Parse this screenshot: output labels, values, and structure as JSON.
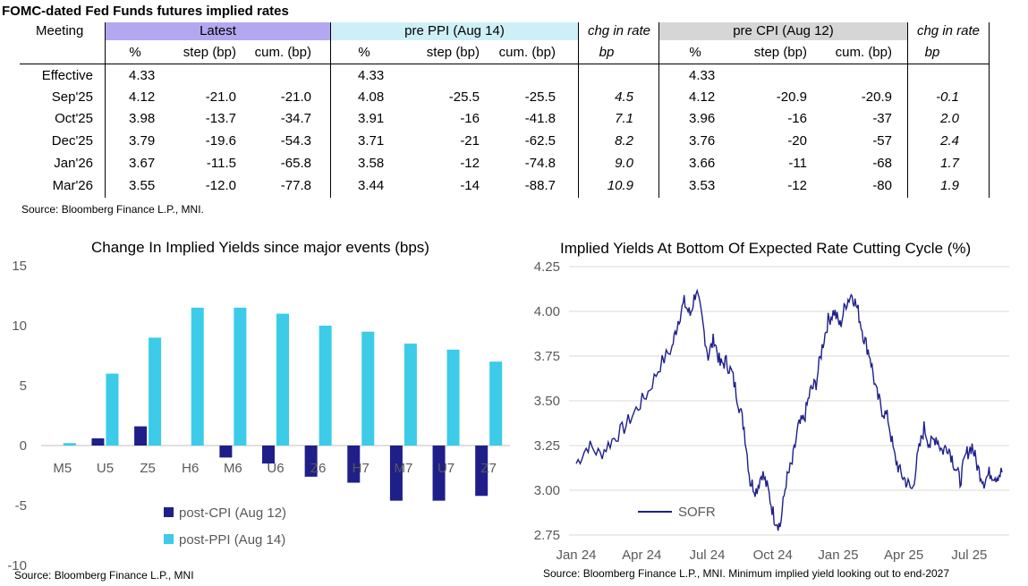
{
  "table": {
    "title": "FOMC-dated Fed Funds futures implied rates",
    "meeting_label": "Meeting",
    "groups": [
      {
        "label": "Latest",
        "color": "#b3a8f0"
      },
      {
        "label": "pre PPI (Aug 14)",
        "color": "#cfeff7"
      },
      {
        "label": "chg in rate",
        "color": ""
      },
      {
        "label": "pre CPI (Aug 12)",
        "color": "#d6d6d6"
      },
      {
        "label": "chg in rate",
        "color": ""
      }
    ],
    "subheaders": [
      "%",
      "step (bp)",
      "cum. (bp)",
      "%",
      "step (bp)",
      "cum. (bp)",
      "bp",
      "%",
      "step (bp)",
      "cum. (bp)",
      "bp"
    ],
    "rows": [
      {
        "meeting": "Effective",
        "cells": [
          "4.33",
          "",
          "",
          "4.33",
          "",
          "",
          "",
          "4.33",
          "",
          "",
          ""
        ]
      },
      {
        "meeting": "Sep'25",
        "cells": [
          "4.12",
          "-21.0",
          "-21.0",
          "4.08",
          "-25.5",
          "-25.5",
          "4.5",
          "4.12",
          "-20.9",
          "-20.9",
          "-0.1"
        ]
      },
      {
        "meeting": "Oct'25",
        "cells": [
          "3.98",
          "-13.7",
          "-34.7",
          "3.91",
          "-16",
          "-41.8",
          "7.1",
          "3.96",
          "-16",
          "-37",
          "2.0"
        ]
      },
      {
        "meeting": "Dec'25",
        "cells": [
          "3.79",
          "-19.6",
          "-54.3",
          "3.71",
          "-21",
          "-62.5",
          "8.2",
          "3.76",
          "-20",
          "-57",
          "2.4"
        ]
      },
      {
        "meeting": "Jan'26",
        "cells": [
          "3.67",
          "-11.5",
          "-65.8",
          "3.58",
          "-12",
          "-74.8",
          "9.0",
          "3.66",
          "-11",
          "-68",
          "1.7"
        ]
      },
      {
        "meeting": "Mar'26",
        "cells": [
          "3.55",
          "-12.0",
          "-77.8",
          "3.44",
          "-14",
          "-88.7",
          "10.9",
          "3.53",
          "-12",
          "-80",
          "1.9"
        ]
      }
    ],
    "source": "Source: Bloomberg Finance L.P., MNI."
  },
  "chart_data": [
    {
      "type": "bar",
      "title": "Change In Implied Yields since major events (bps)",
      "categories": [
        "M5",
        "U5",
        "Z5",
        "H6",
        "M6",
        "U6",
        "Z6",
        "H7",
        "M7",
        "U7",
        "Z7"
      ],
      "series": [
        {
          "name": "post-CPI (Aug 12)",
          "color": "#1f1f8a",
          "values": [
            0.0,
            0.6,
            1.6,
            0.0,
            -1.0,
            -1.5,
            -2.6,
            -3.1,
            -4.6,
            -4.6,
            -4.2
          ]
        },
        {
          "name": "post-PPI (Aug 14)",
          "color": "#3ccbe8",
          "values": [
            0.2,
            6.0,
            9.0,
            11.5,
            11.5,
            11.0,
            10.0,
            9.5,
            8.5,
            8.0,
            7.0
          ]
        }
      ],
      "ylim": [
        -10,
        15
      ],
      "yticks": [
        "-10",
        "-5",
        "0",
        "5",
        "10",
        "15"
      ],
      "legend": "bottom-left",
      "source": "Source: Bloomberg Finance L.P., MNI"
    },
    {
      "type": "line",
      "title": "Implied Yields At Bottom Of Expected Rate Cutting Cycle (%)",
      "x_labels": [
        "Jan 24",
        "Apr 24",
        "Jul 24",
        "Oct 24",
        "Jan 25",
        "Apr 25",
        "Jul 25"
      ],
      "ylim": [
        2.75,
        4.25
      ],
      "yticks": [
        "2.75",
        "3.00",
        "3.25",
        "3.50",
        "3.75",
        "4.00",
        "4.25"
      ],
      "series": [
        {
          "name": "SOFR",
          "color": "#1f1f8a",
          "anchors": [
            [
              0,
              3.15
            ],
            [
              2,
              3.25
            ],
            [
              4,
              3.2
            ],
            [
              6,
              3.28
            ],
            [
              8,
              3.35
            ],
            [
              10,
              3.45
            ],
            [
              12,
              3.55
            ],
            [
              14,
              3.7
            ],
            [
              16,
              3.8
            ],
            [
              17,
              3.95
            ],
            [
              18,
              4.05
            ],
            [
              19,
              3.98
            ],
            [
              20,
              4.12
            ],
            [
              21,
              3.95
            ],
            [
              22,
              3.75
            ],
            [
              23,
              3.85
            ],
            [
              24,
              3.7
            ],
            [
              25,
              3.72
            ],
            [
              26,
              3.65
            ],
            [
              27,
              3.5
            ],
            [
              28,
              3.35
            ],
            [
              29,
              3.05
            ],
            [
              30,
              3.0
            ],
            [
              31,
              3.1
            ],
            [
              32,
              3.0
            ],
            [
              33,
              2.85
            ],
            [
              34,
              2.8
            ],
            [
              35,
              3.05
            ],
            [
              36,
              3.15
            ],
            [
              37,
              3.35
            ],
            [
              38,
              3.4
            ],
            [
              39,
              3.55
            ],
            [
              40,
              3.6
            ],
            [
              41,
              3.8
            ],
            [
              42,
              3.95
            ],
            [
              43,
              4.0
            ],
            [
              44,
              3.92
            ],
            [
              45,
              4.05
            ],
            [
              46,
              4.1
            ],
            [
              47,
              4.0
            ],
            [
              48,
              3.85
            ],
            [
              49,
              3.75
            ],
            [
              50,
              3.55
            ],
            [
              51,
              3.45
            ],
            [
              52,
              3.4
            ],
            [
              53,
              3.2
            ],
            [
              54,
              3.1
            ],
            [
              55,
              3.05
            ],
            [
              56,
              3.0
            ],
            [
              57,
              3.2
            ],
            [
              58,
              3.35
            ],
            [
              59,
              3.25
            ],
            [
              60,
              3.3
            ],
            [
              61,
              3.22
            ],
            [
              62,
              3.25
            ],
            [
              63,
              3.15
            ],
            [
              64,
              3.05
            ],
            [
              65,
              3.2
            ],
            [
              66,
              3.25
            ],
            [
              67,
              3.12
            ],
            [
              68,
              3.05
            ],
            [
              69,
              3.1
            ],
            [
              70,
              3.08
            ],
            [
              71,
              3.1
            ]
          ],
          "first_month": "Jan 24",
          "last_month": "Aug 25"
        }
      ],
      "legend": "bottom-left",
      "source": "Source: Bloomberg Finance L.P., MNI. Minimum implied yield looking out to end-2027"
    }
  ]
}
